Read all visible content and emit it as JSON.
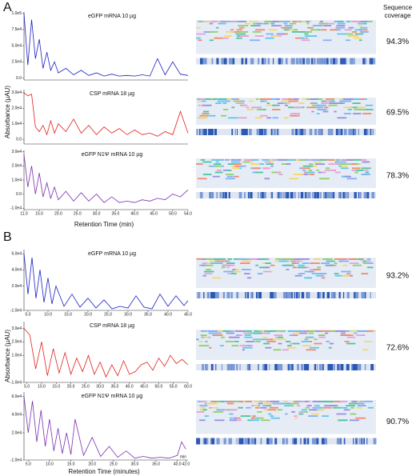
{
  "figure": {
    "coverage_header": [
      "Sequence",
      "coverage"
    ],
    "panels": [
      {
        "label": "A",
        "y_label": "Absorbance (µAU)",
        "x_label": "Retention Time (min)"
      },
      {
        "label": "B",
        "y_label": "Absorbance (µAU)",
        "x_label": "Retention Time (minutes)"
      }
    ]
  },
  "chart_data": [
    {
      "type": "line",
      "title": "eGFP mRNA 10 µg",
      "color": "#1a1fc4",
      "coverage": "94.3%",
      "x": [
        11,
        12,
        13,
        14,
        15,
        16,
        17,
        18,
        19,
        20,
        22,
        24,
        26,
        28,
        30,
        32,
        34,
        36,
        38,
        40,
        42,
        44,
        46,
        48,
        50,
        52,
        54
      ],
      "values": [
        100000,
        20000,
        90000,
        30000,
        60000,
        15000,
        40000,
        12000,
        25000,
        8000,
        15000,
        5000,
        12000,
        4000,
        8000,
        3000,
        6000,
        3000,
        4000,
        3000,
        5000,
        3000,
        30000,
        5000,
        25000,
        6000,
        4000
      ],
      "xlim": [
        11,
        54
      ],
      "ylim": [
        -3000,
        102000
      ],
      "yticks": [
        {
          "value": 0,
          "label": "0.0"
        },
        {
          "value": 25000,
          "label": "2.5e4"
        },
        {
          "value": 50000,
          "label": "5.0e4"
        },
        {
          "value": 75000,
          "label": "7.5e4"
        },
        {
          "value": 100000,
          "label": "1.0e5"
        }
      ]
    },
    {
      "type": "line",
      "title": "CSP mRNA 18 µg",
      "color": "#e0201b",
      "coverage": "69.5%",
      "x": [
        11,
        12,
        13,
        14,
        15,
        16,
        17,
        18,
        19,
        20,
        22,
        24,
        26,
        28,
        30,
        32,
        34,
        36,
        38,
        40,
        42,
        44,
        46,
        48,
        50,
        52,
        54
      ],
      "values": [
        30000,
        28000,
        29000,
        8000,
        5000,
        9000,
        3000,
        12000,
        4000,
        10000,
        5000,
        13000,
        4000,
        9000,
        3000,
        8000,
        4000,
        7000,
        3000,
        6000,
        3000,
        4000,
        2000,
        5000,
        3000,
        18000,
        4000
      ],
      "xlim": [
        11,
        54
      ],
      "ylim": [
        -3000,
        32000
      ],
      "yticks": [
        {
          "value": 0,
          "label": "0.0"
        },
        {
          "value": 10000,
          "label": "1.0e4"
        },
        {
          "value": 20000,
          "label": "2.0e4"
        },
        {
          "value": 30000,
          "label": "3.0e4"
        }
      ]
    },
    {
      "type": "line",
      "title": "eGFP N1Ψ mRNA 10 µg",
      "color": "#7a2fb0",
      "coverage": "78.3%",
      "x": [
        11,
        12,
        13,
        14,
        15,
        16,
        17,
        18,
        19,
        20,
        22,
        24,
        26,
        28,
        30,
        32,
        34,
        36,
        38,
        40,
        42,
        44,
        46,
        48,
        50,
        52,
        54
      ],
      "values": [
        28000,
        5000,
        20000,
        0,
        15000,
        -2000,
        8000,
        -3000,
        5000,
        -4000,
        2000,
        -5000,
        1000,
        -5000,
        0,
        -6000,
        -2000,
        -6000,
        -5000,
        -6000,
        -4000,
        -5000,
        -3000,
        -4000,
        0,
        -2000,
        3000
      ],
      "xlim": [
        11,
        54
      ],
      "ylim": [
        -11000,
        31000
      ],
      "yticks": [
        {
          "value": -10000,
          "label": "-1.0e4"
        },
        {
          "value": 0,
          "label": "0.0"
        },
        {
          "value": 10000,
          "label": "1.0e4"
        },
        {
          "value": 20000,
          "label": "2.0e4"
        },
        {
          "value": 30000,
          "label": "3.0e4"
        }
      ],
      "xticks": [
        {
          "value": 11,
          "label": "11.0"
        },
        {
          "value": 15,
          "label": "15.0"
        },
        {
          "value": 20,
          "label": "20.0"
        },
        {
          "value": 25,
          "label": "25.0"
        },
        {
          "value": 30,
          "label": "30.0"
        },
        {
          "value": 35,
          "label": "35.0"
        },
        {
          "value": 40,
          "label": "40.0"
        },
        {
          "value": 45,
          "label": "45.0"
        },
        {
          "value": 50,
          "label": "50.0"
        },
        {
          "value": 54,
          "label": "54.0"
        }
      ]
    },
    {
      "type": "line",
      "title": "eGFP mRNA 10 µg",
      "color": "#1a1fc4",
      "coverage": "93.2%",
      "x": [
        4,
        5,
        6,
        7,
        8,
        9,
        10,
        11,
        12,
        14,
        16,
        18,
        20,
        22,
        24,
        26,
        28,
        30,
        32,
        34,
        36,
        38,
        40,
        42,
        44,
        45
      ],
      "values": [
        60000,
        10000,
        55000,
        5000,
        40000,
        0,
        30000,
        -2000,
        20000,
        -5000,
        10000,
        -6000,
        5000,
        -7000,
        3000,
        -8000,
        -5000,
        -7000,
        8000,
        -6000,
        -8000,
        10000,
        -5000,
        8000,
        -4000,
        2000
      ],
      "xlim": [
        4,
        45
      ],
      "ylim": [
        -10000,
        65000
      ],
      "yticks": [
        {
          "value": -10000,
          "label": "-1.0e4"
        },
        {
          "value": 20000,
          "label": "2.0e4"
        },
        {
          "value": 40000,
          "label": "4.0e4"
        },
        {
          "value": 60000,
          "label": "6.0e4"
        }
      ],
      "xticks": [
        {
          "value": 5,
          "label": "5.0"
        },
        {
          "value": 10,
          "label": "10.0"
        },
        {
          "value": 15,
          "label": "15.0"
        },
        {
          "value": 20,
          "label": "20.0"
        },
        {
          "value": 25,
          "label": "25.0"
        },
        {
          "value": 30,
          "label": "30.0"
        },
        {
          "value": 35,
          "label": "35.0"
        },
        {
          "value": 40,
          "label": "40.0"
        },
        {
          "value": 45,
          "label": "45.0"
        }
      ]
    },
    {
      "type": "line",
      "title": "CSP mRNA 18 µg",
      "color": "#e0201b",
      "coverage": "72.6%",
      "x": [
        4,
        6,
        8,
        10,
        12,
        14,
        16,
        18,
        20,
        22,
        24,
        26,
        28,
        30,
        32,
        34,
        36,
        38,
        40,
        42,
        44,
        46,
        48,
        50,
        52,
        54,
        56,
        58,
        60
      ],
      "values": [
        30000,
        25000,
        0,
        20000,
        -5000,
        15000,
        -3000,
        12000,
        -4000,
        8000,
        -2000,
        10000,
        -4000,
        5000,
        -6000,
        3000,
        -5000,
        6000,
        -4000,
        -2000,
        3000,
        5000,
        -1000,
        8000,
        2000,
        10000,
        4000,
        7000,
        3000
      ],
      "xlim": [
        4,
        60
      ],
      "ylim": [
        -10000,
        35000
      ],
      "yticks": [
        {
          "value": -10000,
          "label": "-1.0e4"
        },
        {
          "value": 10000,
          "label": "1.0e4"
        },
        {
          "value": 20000,
          "label": "2.0e4"
        },
        {
          "value": 30000,
          "label": "3.0e4"
        }
      ],
      "xticks": [
        {
          "value": 5,
          "label": "5.0"
        },
        {
          "value": 10,
          "label": "10.0"
        },
        {
          "value": 15,
          "label": "15.0"
        },
        {
          "value": 20,
          "label": "20.0"
        },
        {
          "value": 25,
          "label": "25.0"
        },
        {
          "value": 30,
          "label": "30.0"
        },
        {
          "value": 35,
          "label": "35.0"
        },
        {
          "value": 40,
          "label": "40.0"
        },
        {
          "value": 45,
          "label": "45.0"
        },
        {
          "value": 50,
          "label": "50.0"
        },
        {
          "value": 55,
          "label": "55.0"
        },
        {
          "value": 60,
          "label": "60.0"
        }
      ]
    },
    {
      "type": "line",
      "title": "eGFP N1Ψ mRNA 10 µg",
      "color": "#7a2fb0",
      "coverage": "90.7%",
      "x_unit": "min",
      "x": [
        4,
        5,
        6,
        7,
        8,
        9,
        10,
        11,
        12,
        13,
        14,
        15,
        16,
        18,
        20,
        22,
        24,
        26,
        28,
        30,
        32,
        34,
        36,
        38,
        40,
        41,
        42
      ],
      "values": [
        60000,
        20000,
        55000,
        10000,
        45000,
        5000,
        35000,
        0,
        25000,
        -3000,
        20000,
        -4000,
        35000,
        -5000,
        15000,
        -6000,
        5000,
        -7000,
        0,
        -8000,
        -6000,
        -8000,
        -7000,
        -8000,
        -5000,
        10000,
        2000
      ],
      "xlim": [
        4,
        42.5
      ],
      "ylim": [
        -10000,
        65000
      ],
      "yticks": [
        {
          "value": -10000,
          "label": "-1.0e4"
        },
        {
          "value": 20000,
          "label": "2.0e4"
        },
        {
          "value": 40000,
          "label": "4.0e4"
        },
        {
          "value": 60000,
          "label": "6.0e4"
        }
      ],
      "xticks": [
        {
          "value": 5,
          "label": "5.0"
        },
        {
          "value": 10,
          "label": "10.0"
        },
        {
          "value": 15,
          "label": "15.0"
        },
        {
          "value": 20,
          "label": "20.0"
        },
        {
          "value": 25,
          "label": "25.0"
        },
        {
          "value": 30,
          "label": "30.0"
        },
        {
          "value": 35,
          "label": "35.0"
        },
        {
          "value": 40,
          "label": "40.0"
        },
        {
          "value": 42,
          "label": "42.0"
        }
      ]
    }
  ]
}
